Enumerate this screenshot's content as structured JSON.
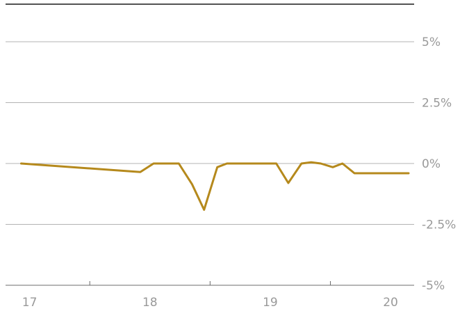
{
  "chart_data": {
    "type": "line",
    "title": "",
    "xlabel": "",
    "ylabel": "",
    "y_ticks": [
      {
        "value": 5,
        "label": "5%"
      },
      {
        "value": 2.5,
        "label": "2.5%"
      },
      {
        "value": 0,
        "label": "0%"
      },
      {
        "value": -2.5,
        "label": "-2.5%"
      },
      {
        "value": -5,
        "label": "-5%"
      }
    ],
    "x_ticks": [
      {
        "value": 17,
        "label": "17"
      },
      {
        "value": 18,
        "label": "18"
      },
      {
        "value": 19,
        "label": "19"
      },
      {
        "value": 20,
        "label": "20"
      }
    ],
    "ylim": [
      -5,
      5
    ],
    "xlim": [
      16.8,
      20.15
    ],
    "y_axis_side": "right",
    "grid": true,
    "colors": {
      "series": "#b5891c",
      "grid": "#b3b3b3",
      "labels": "#999999"
    },
    "series": [
      {
        "x": [
          16.93,
          17.92,
          18.03,
          18.24,
          18.35,
          18.45,
          18.56,
          18.64,
          18.94,
          19.05,
          19.15,
          19.26,
          19.34,
          19.42,
          19.52,
          19.6,
          19.7,
          20.15
        ],
        "values": [
          0.0,
          -0.35,
          0.0,
          0.0,
          -0.85,
          -1.9,
          -0.15,
          0.0,
          0.0,
          0.0,
          -0.8,
          0.0,
          0.05,
          0.0,
          -0.15,
          0.0,
          -0.4,
          -0.4
        ]
      }
    ]
  }
}
